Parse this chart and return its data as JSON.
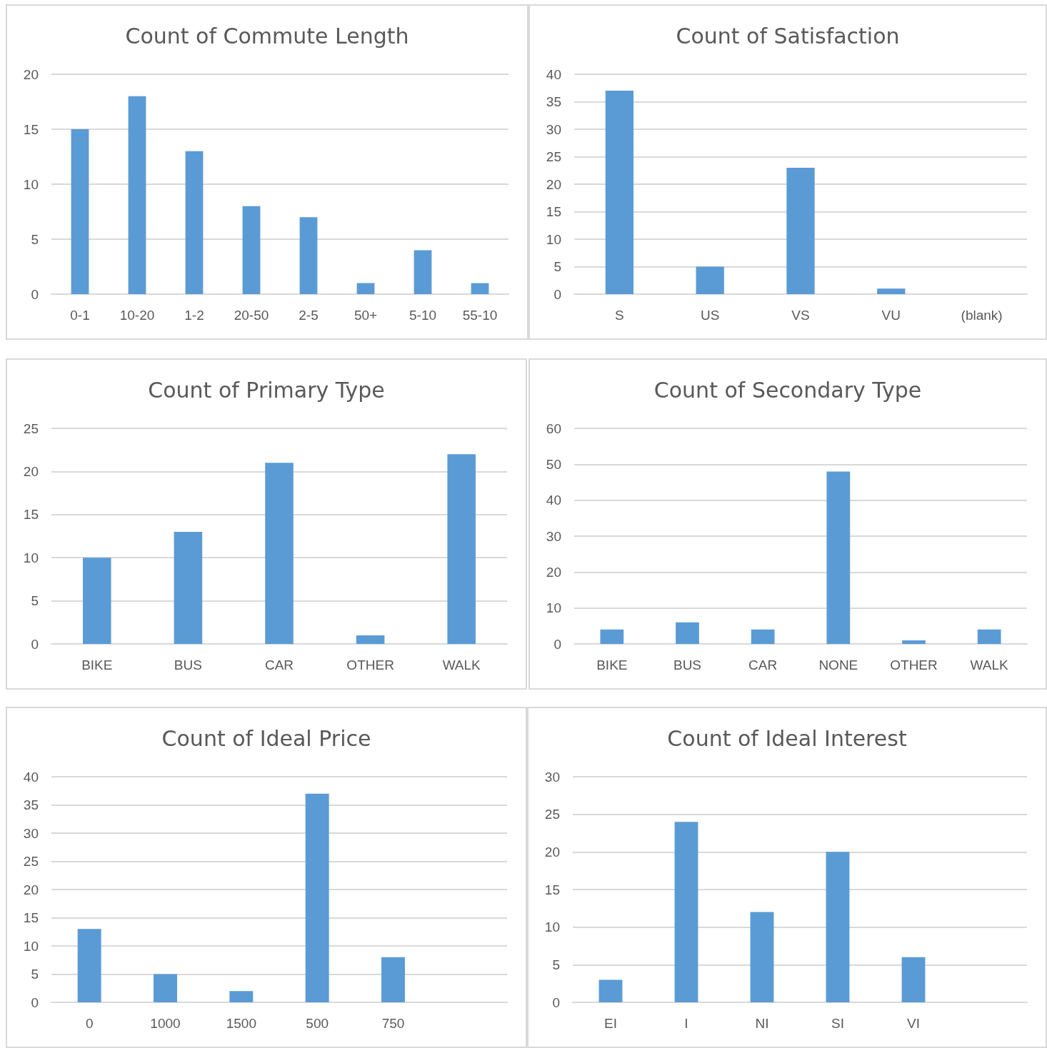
{
  "chart_data": [
    {
      "type": "bar",
      "title": "Count of Commute Length",
      "categories": [
        "0-1",
        "10-20",
        "1-2",
        "20-50",
        "2-5",
        "50+",
        "5-10",
        "55-10"
      ],
      "values": [
        15,
        18,
        13,
        8,
        7,
        1,
        4,
        1
      ],
      "color": "#5b9bd5",
      "ylim": [
        0,
        20
      ],
      "yticks": [
        0,
        5,
        10,
        15,
        20
      ],
      "grid": "y"
    },
    {
      "type": "bar",
      "title": "Count of Satisfaction",
      "categories": [
        "S",
        "US",
        "VS",
        "VU",
        "(blank)"
      ],
      "values": [
        37,
        5,
        23,
        1,
        null
      ],
      "color": "#5b9bd5",
      "ylim": [
        0,
        40
      ],
      "yticks": [
        0,
        5,
        10,
        15,
        20,
        25,
        30,
        35,
        40
      ],
      "grid": "y"
    },
    {
      "type": "bar",
      "title": "Count of Primary Type",
      "categories": [
        "BIKE",
        "BUS",
        "CAR",
        "OTHER",
        "WALK"
      ],
      "values": [
        10,
        13,
        21,
        1,
        22
      ],
      "color": "#5b9bd5",
      "ylim": [
        0,
        25
      ],
      "yticks": [
        0,
        5,
        10,
        15,
        20,
        25
      ],
      "grid": "y"
    },
    {
      "type": "bar",
      "title": "Count of Secondary Type",
      "categories": [
        "BIKE",
        "BUS",
        "CAR",
        "NONE",
        "OTHER",
        "WALK"
      ],
      "values": [
        4,
        6,
        4,
        48,
        1,
        4
      ],
      "color": "#5b9bd5",
      "ylim": [
        0,
        60
      ],
      "yticks": [
        0,
        10,
        20,
        30,
        40,
        50,
        60
      ],
      "grid": "y"
    },
    {
      "type": "bar",
      "title": "Count of Ideal Price",
      "categories": [
        "0",
        "1000",
        "1500",
        "500",
        "750",
        null
      ],
      "values": [
        13,
        5,
        2,
        37,
        8,
        null
      ],
      "color": "#5b9bd5",
      "ylim": [
        0,
        40
      ],
      "yticks": [
        0,
        5,
        10,
        15,
        20,
        25,
        30,
        35,
        40
      ],
      "grid": "y"
    },
    {
      "type": "bar",
      "title": "Count of Ideal Interest",
      "categories": [
        "EI",
        "I",
        "NI",
        "SI",
        "VI",
        null
      ],
      "values": [
        3,
        24,
        12,
        20,
        6,
        null
      ],
      "color": "#5b9bd5",
      "ylim": [
        0,
        30
      ],
      "yticks": [
        0,
        5,
        10,
        15,
        20,
        25,
        30
      ],
      "grid": "y"
    }
  ]
}
